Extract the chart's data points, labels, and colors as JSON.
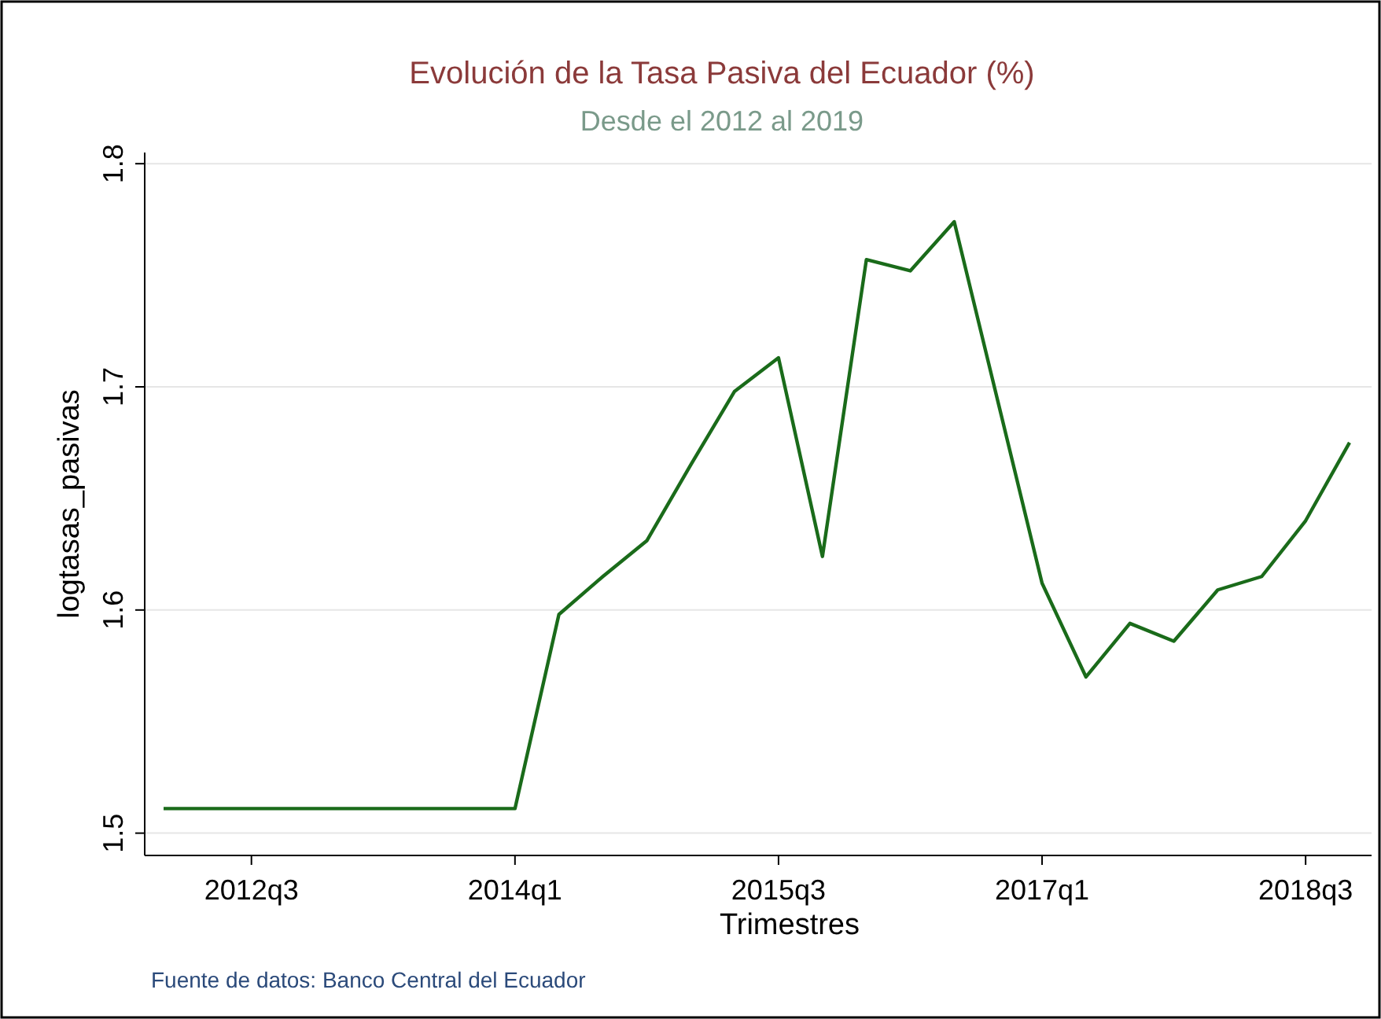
{
  "chart_data": {
    "type": "line",
    "title": "Evolución de la Tasa Pasiva del Ecuador (%)",
    "subtitle": "Desde el 2012 al 2019",
    "xlabel": "Trimestres",
    "ylabel": "logtasas_pasivas",
    "annotations": [
      "Fuente de datos: Banco Central del Ecuador"
    ],
    "categories": [
      null,
      null,
      "2012q3",
      null,
      null,
      null,
      null,
      null,
      "2014q1",
      null,
      null,
      null,
      null,
      null,
      "2015q3",
      null,
      null,
      null,
      null,
      null,
      "2017q1",
      null,
      null,
      null,
      null,
      null,
      "2018q3",
      null
    ],
    "series": [
      {
        "color": "#1a6b1a",
        "values": [
          1.511,
          1.511,
          1.511,
          1.511,
          1.511,
          1.511,
          1.511,
          1.511,
          1.511,
          1.598,
          1.615,
          1.631,
          1.665,
          1.698,
          1.713,
          1.624,
          1.757,
          1.752,
          1.774,
          1.693,
          1.612,
          1.57,
          1.594,
          1.586,
          1.609,
          1.615,
          1.64,
          1.675
        ]
      }
    ],
    "ylim": [
      1.49,
      1.805
    ],
    "yticks": [
      {
        "value": 1.5,
        "label": "1.5"
      },
      {
        "value": 1.6,
        "label": "1.6"
      },
      {
        "value": 1.7,
        "label": "1.7"
      },
      {
        "value": 1.8,
        "label": "1.8"
      }
    ],
    "grid": "y",
    "marker": "none",
    "line_style": "solid"
  }
}
